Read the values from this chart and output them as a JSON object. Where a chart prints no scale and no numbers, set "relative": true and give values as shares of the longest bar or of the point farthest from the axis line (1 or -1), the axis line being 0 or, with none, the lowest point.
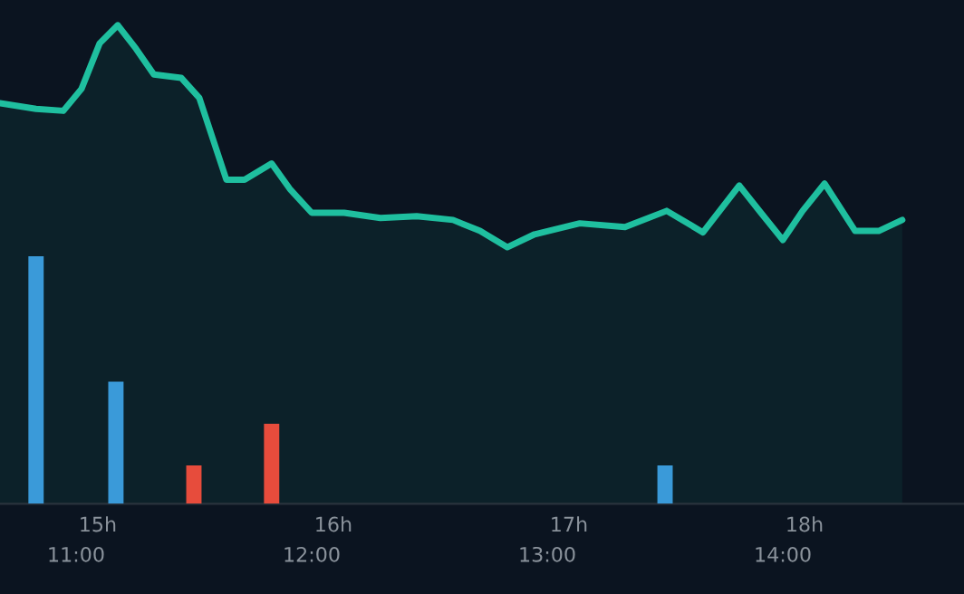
{
  "chart_data": {
    "type": "area",
    "relative": true,
    "series": [
      {
        "color": "#1fbf9f",
        "x": [
          10.677,
          10.83,
          10.946,
          11.023,
          11.1,
          11.177,
          11.254,
          11.33,
          11.446,
          11.523,
          11.638,
          11.715,
          11.83,
          11.907,
          12.0,
          12.138,
          12.292,
          12.446,
          12.6,
          12.715,
          12.83,
          12.946,
          13.138,
          13.33,
          13.507,
          13.661,
          13.815,
          13.907,
          14.0,
          14.084,
          14.177,
          14.307,
          14.407,
          14.507
        ],
        "values": [
          0.837,
          0.825,
          0.821,
          0.867,
          0.962,
          1.0,
          0.951,
          0.897,
          0.89,
          0.848,
          0.677,
          0.677,
          0.711,
          0.658,
          0.608,
          0.608,
          0.597,
          0.601,
          0.593,
          0.57,
          0.536,
          0.563,
          0.586,
          0.578,
          0.612,
          0.567,
          0.665,
          0.608,
          0.551,
          0.612,
          0.669,
          0.57,
          0.57,
          0.593
        ]
      },
      {
        "type": "bar",
        "x": [
          10.83,
          11.169,
          11.5,
          11.83,
          13.5
        ],
        "values": [
          0.517,
          0.255,
          0.08,
          0.167,
          0.08
        ],
        "colors": [
          "#3a9ad9",
          "#3a9ad9",
          "#e74c3c",
          "#e74c3c",
          "#3a9ad9"
        ]
      }
    ],
    "xlim": [
      10.677,
      14.769
    ],
    "xticks": [
      {
        "value": 11,
        "label": "11:00"
      },
      {
        "value": 12,
        "label": "12:00"
      },
      {
        "value": 13,
        "label": "13:00"
      },
      {
        "value": 14,
        "label": "14:00"
      }
    ],
    "x2lim": [
      14.585,
      18.677
    ],
    "x2ticks": [
      {
        "value": 15,
        "label": "15h"
      },
      {
        "value": 16,
        "label": "16h"
      },
      {
        "value": 17,
        "label": "17h"
      },
      {
        "value": 18,
        "label": "18h"
      }
    ],
    "grid": false,
    "legend": false
  }
}
